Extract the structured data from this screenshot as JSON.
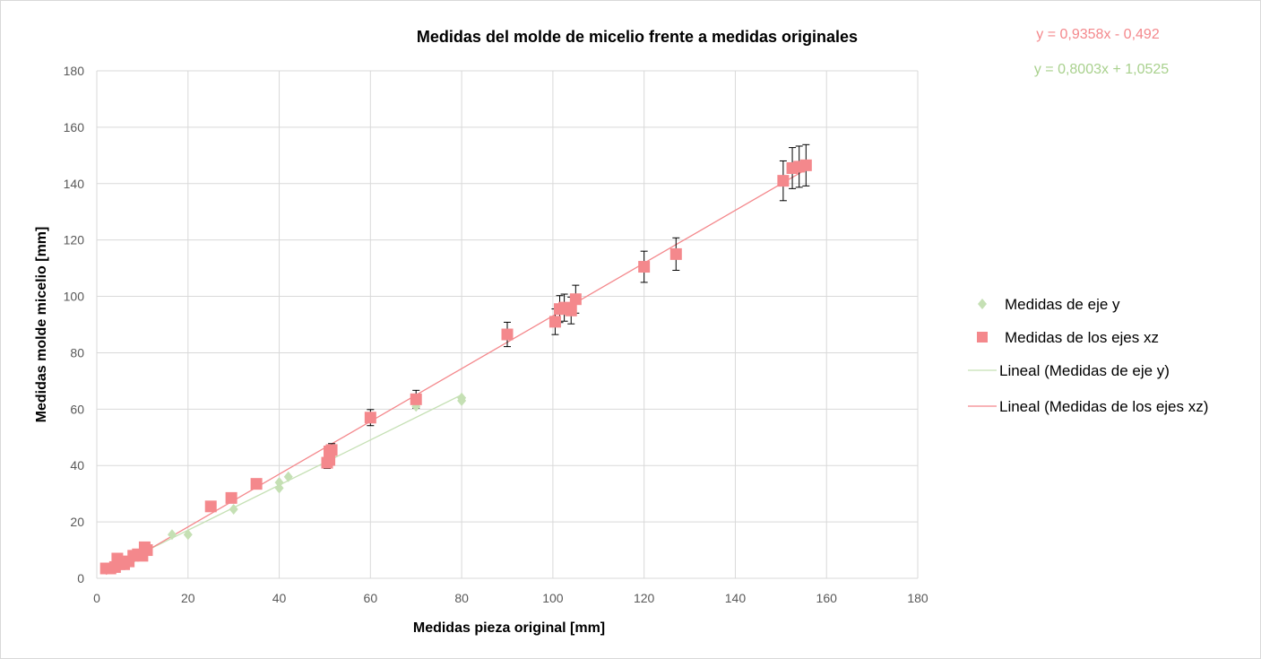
{
  "chart_data": {
    "type": "scatter",
    "title": "Medidas del molde de micelio frente a medidas originales",
    "xlabel": "Medidas pieza original [mm]",
    "ylabel": "Medidas molde micelio [mm]",
    "xlim": [
      0,
      180
    ],
    "ylim": [
      0,
      180
    ],
    "x_ticks": [
      0,
      20,
      40,
      60,
      80,
      100,
      120,
      140,
      160,
      180
    ],
    "y_ticks": [
      0,
      20,
      40,
      60,
      80,
      100,
      120,
      140,
      160,
      180
    ],
    "grid": true,
    "legend_position": "right",
    "series": [
      {
        "name": "Medidas de eje y",
        "marker": "diamond",
        "color": "#c5e0b4",
        "points": [
          [
            2,
            3.5
          ],
          [
            3,
            4
          ],
          [
            4,
            4.5
          ],
          [
            5,
            5
          ],
          [
            6,
            5.5
          ],
          [
            7,
            6
          ],
          [
            8,
            7
          ],
          [
            9,
            8
          ],
          [
            10,
            8.5
          ],
          [
            11,
            9.5
          ],
          [
            16.5,
            15.5
          ],
          [
            20,
            15.5
          ],
          [
            30,
            24.5
          ],
          [
            40,
            32
          ],
          [
            40,
            34
          ],
          [
            42,
            36
          ],
          [
            70,
            61
          ],
          [
            80,
            63
          ],
          [
            80,
            64
          ]
        ]
      },
      {
        "name": "Medidas de los ejes xz",
        "marker": "square",
        "color": "#f4888c",
        "points": [
          [
            2,
            3.5
          ],
          [
            3,
            3.5
          ],
          [
            4,
            4
          ],
          [
            4.5,
            7
          ],
          [
            5,
            5
          ],
          [
            6,
            5
          ],
          [
            7,
            6
          ],
          [
            8,
            8
          ],
          [
            9,
            8.5
          ],
          [
            10,
            8
          ],
          [
            10.5,
            11
          ],
          [
            11,
            10
          ],
          [
            25,
            25.5
          ],
          [
            29.5,
            28.5
          ],
          [
            35,
            33.5
          ],
          [
            50.5,
            41
          ],
          [
            51,
            42
          ],
          [
            51,
            43
          ],
          [
            51,
            44
          ],
          [
            51,
            45
          ],
          [
            51.5,
            45.5
          ],
          [
            60,
            57
          ],
          [
            70,
            63.5
          ],
          [
            90,
            86.5
          ],
          [
            100.5,
            91
          ],
          [
            101.5,
            95.5
          ],
          [
            102.5,
            96
          ],
          [
            104,
            95
          ],
          [
            105,
            99
          ],
          [
            120,
            110.5
          ],
          [
            127,
            115
          ],
          [
            150.5,
            141
          ],
          [
            152.5,
            145.5
          ],
          [
            154,
            146
          ],
          [
            155.5,
            146.5
          ]
        ],
        "error_bar_pct": 5
      }
    ],
    "trendlines": [
      {
        "name": "Lineal (Medidas de eje y)",
        "slope": 0.8003,
        "intercept": 1.0525,
        "x_range": [
          2,
          80
        ],
        "color": "#c5e0b4",
        "equation": "y = 0,8003x + 1,0525"
      },
      {
        "name": "Lineal (Medidas de los ejes xz)",
        "slope": 0.9358,
        "intercept": -0.492,
        "x_range": [
          2,
          155.5
        ],
        "color": "#f4888c",
        "equation": "y = 0,9358x - 0,492"
      }
    ]
  }
}
